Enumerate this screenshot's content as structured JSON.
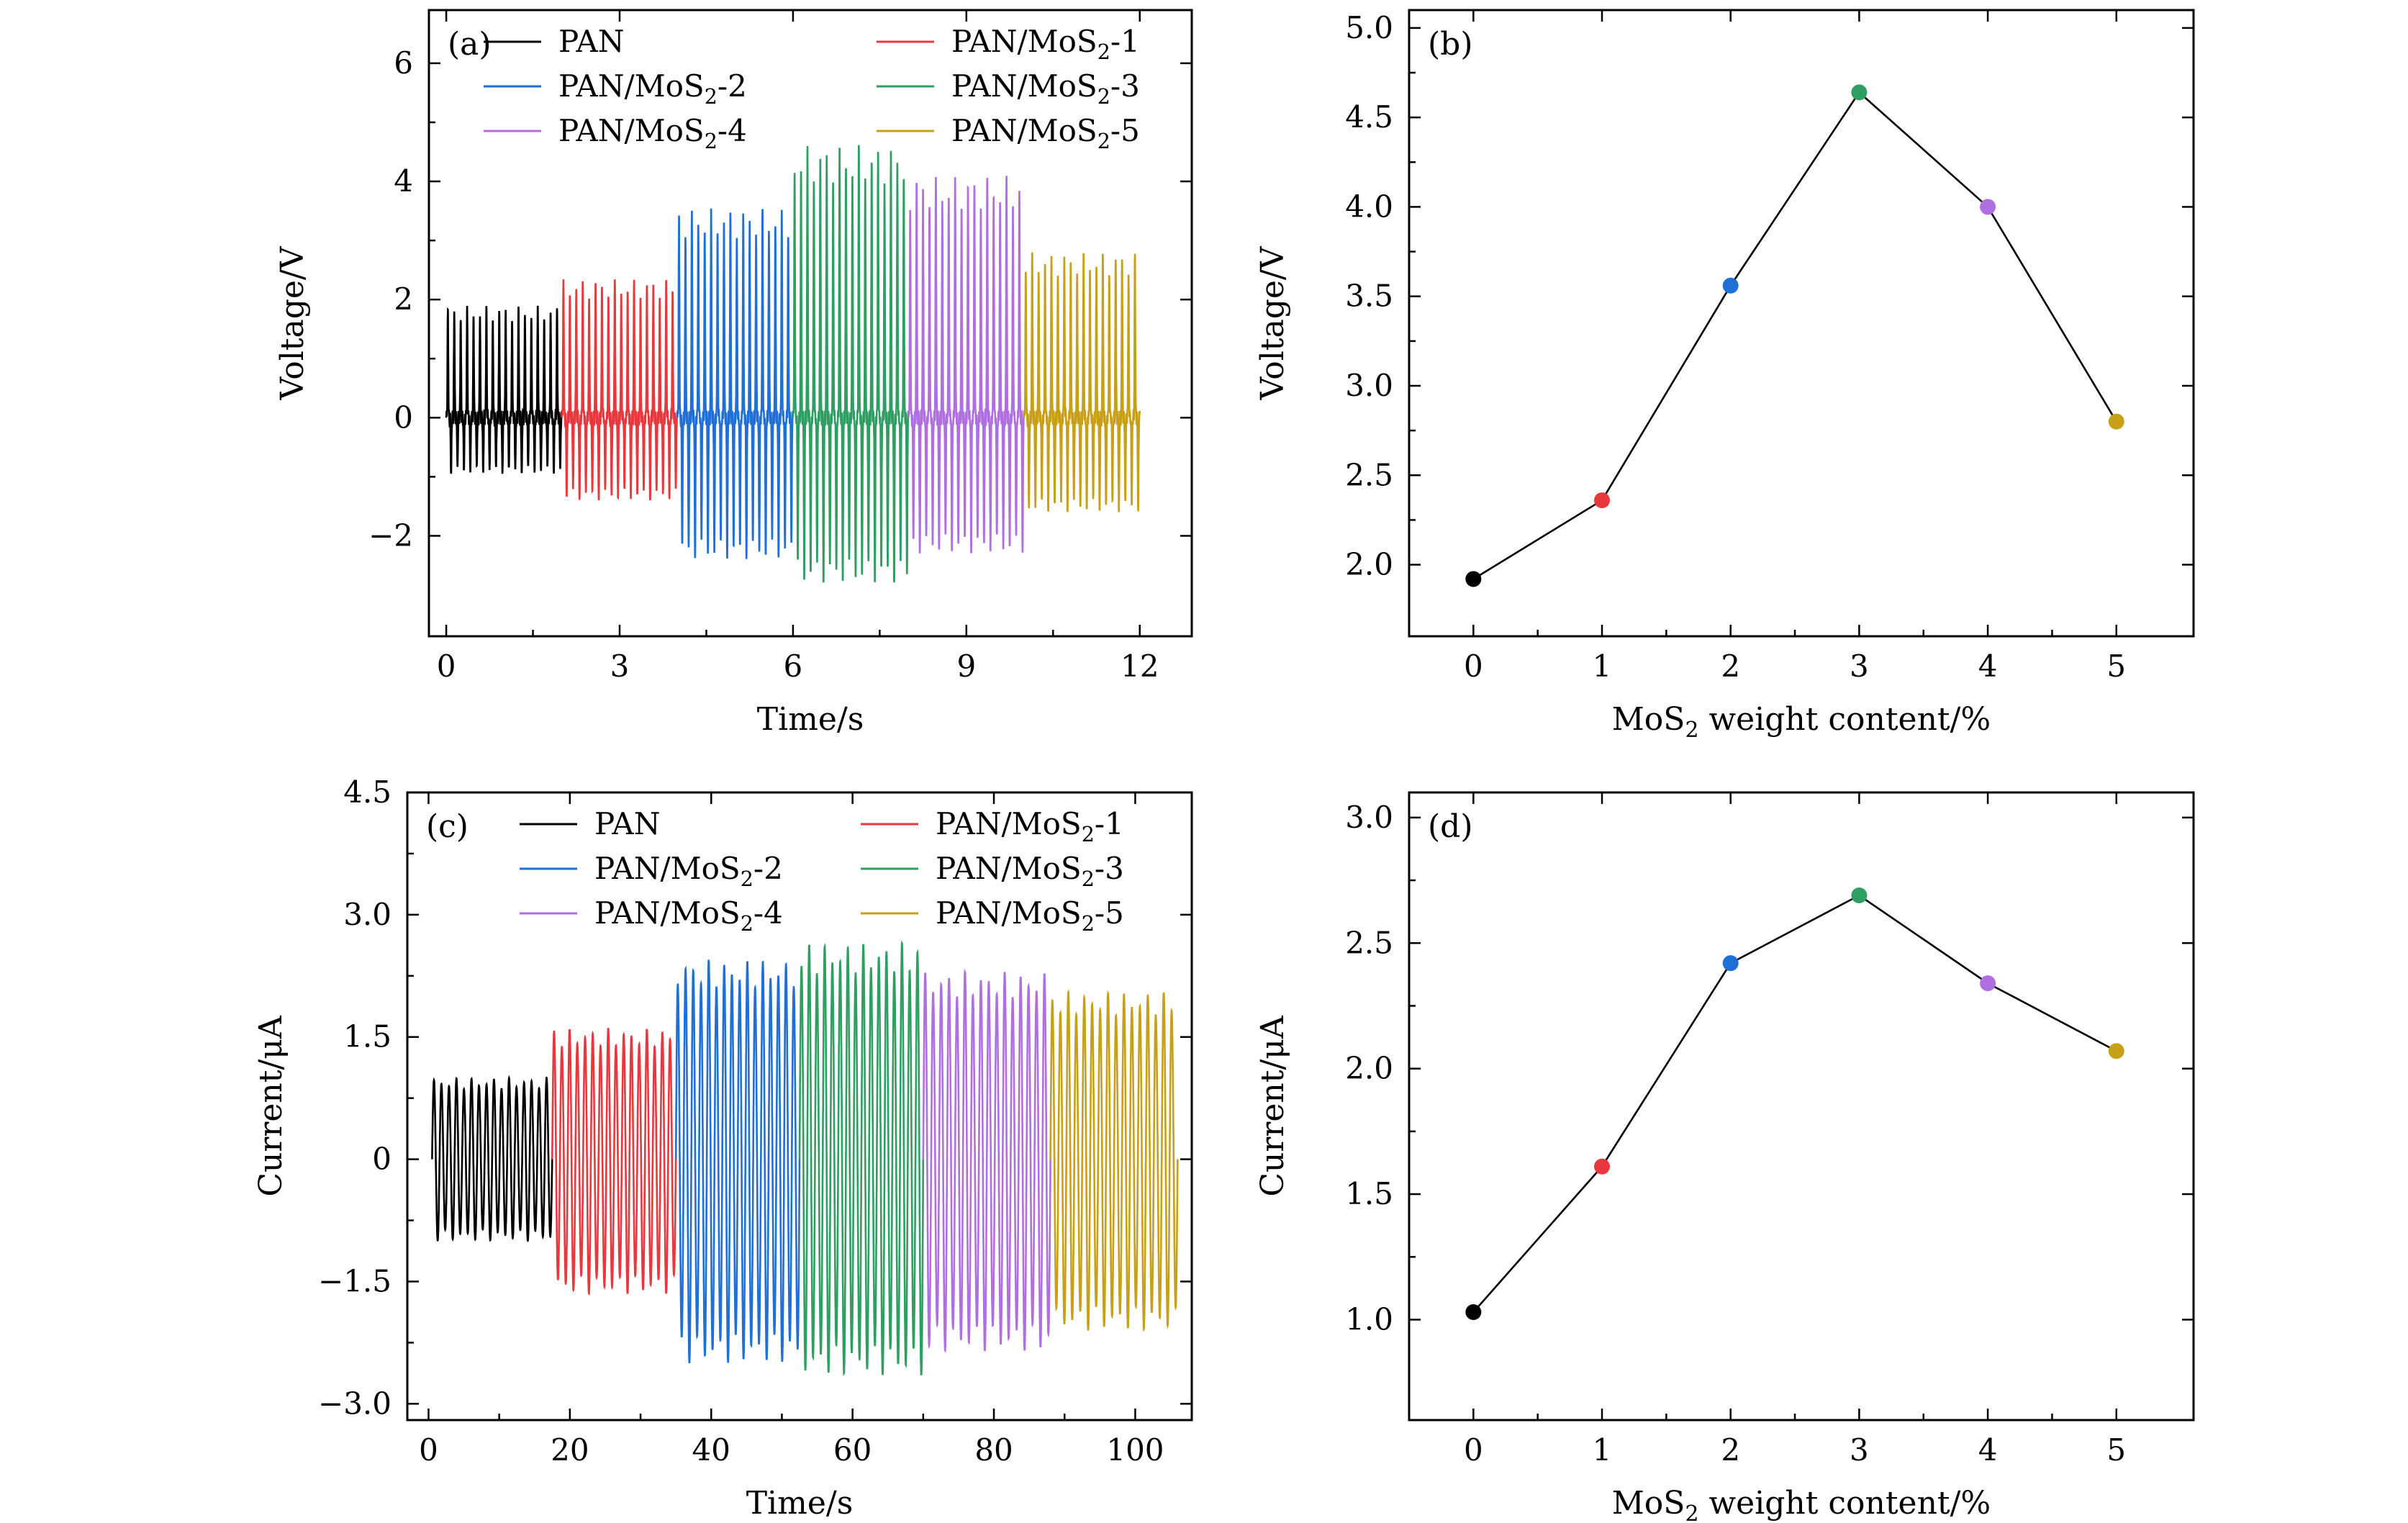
{
  "colors": {
    "PAN": "#000000",
    "PAN/MoS2-1": "#e8383d",
    "PAN/MoS2-2": "#1f6fd6",
    "PAN/MoS2-3": "#2f9e62",
    "PAN/MoS2-4": "#b06fe0",
    "PAN/MoS2-5": "#c8a018"
  },
  "chart_data": [
    {
      "panel": "(a)",
      "type": "line",
      "xlabel": "Time/s",
      "ylabel": "Voltage/V",
      "xlim": [
        -0.3,
        12.9
      ],
      "ylim": [
        -3.7,
        6.9
      ],
      "xticks": [
        0,
        3,
        6,
        9,
        12
      ],
      "yticks": [
        -2,
        0,
        2,
        4,
        6
      ],
      "xtick_labels": [
        "0",
        "3",
        "6",
        "9",
        "12"
      ],
      "ytick_labels": [
        "−2",
        "0",
        "2",
        "4",
        "6"
      ],
      "legend": [
        "PAN",
        "PAN/MoS2-1",
        "PAN/MoS2-2",
        "PAN/MoS2-3",
        "PAN/MoS2-4",
        "PAN/MoS2-5"
      ],
      "legend_placement": "top",
      "series": [
        {
          "name": "PAN",
          "x_range": [
            0,
            2
          ],
          "peak": 1.9,
          "trough": -0.95,
          "cycles": 18
        },
        {
          "name": "PAN/MoS2-1",
          "x_range": [
            2,
            4
          ],
          "peak": 2.35,
          "trough": -1.4,
          "cycles": 18
        },
        {
          "name": "PAN/MoS2-2",
          "x_range": [
            4,
            6
          ],
          "peak": 3.55,
          "trough": -2.4,
          "cycles": 18
        },
        {
          "name": "PAN/MoS2-3",
          "x_range": [
            6,
            8
          ],
          "peak": 4.62,
          "trough": -2.8,
          "cycles": 18
        },
        {
          "name": "PAN/MoS2-4",
          "x_range": [
            8,
            10
          ],
          "peak": 4.1,
          "trough": -2.3,
          "cycles": 18
        },
        {
          "name": "PAN/MoS2-5",
          "x_range": [
            10,
            12
          ],
          "peak": 2.8,
          "trough": -1.6,
          "cycles": 18
        }
      ]
    },
    {
      "panel": "(b)",
      "type": "line",
      "xlabel": "MoS2 weight content/%",
      "ylabel": "Voltage/V",
      "xlim": [
        -0.5,
        5.6
      ],
      "ylim": [
        1.6,
        5.1
      ],
      "xticks": [
        0,
        1,
        2,
        3,
        4,
        5
      ],
      "yticks": [
        2.0,
        2.5,
        3.0,
        3.5,
        4.0,
        4.5,
        5.0
      ],
      "xtick_labels": [
        "0",
        "1",
        "2",
        "3",
        "4",
        "5"
      ],
      "ytick_labels": [
        "2.0",
        "2.5",
        "3.0",
        "3.5",
        "4.0",
        "4.5",
        "5.0"
      ],
      "x": [
        0,
        1,
        2,
        3,
        4,
        5
      ],
      "values": [
        1.92,
        2.36,
        3.56,
        4.64,
        4.0,
        2.8
      ]
    },
    {
      "panel": "(c)",
      "type": "line",
      "xlabel": "Time/s",
      "ylabel": "Current/μA",
      "xlim": [
        -3,
        108
      ],
      "ylim": [
        -3.2,
        4.5
      ],
      "xticks": [
        0,
        20,
        40,
        60,
        80,
        100
      ],
      "yticks": [
        -3.0,
        -1.5,
        0,
        1.5,
        3.0,
        4.5
      ],
      "xtick_labels": [
        "0",
        "20",
        "40",
        "60",
        "80",
        "100"
      ],
      "ytick_labels": [
        "−3.0",
        "−1.5",
        "0",
        "1.5",
        "3.0",
        "4.5"
      ],
      "legend": [
        "PAN",
        "PAN/MoS2-1",
        "PAN/MoS2-2",
        "PAN/MoS2-3",
        "PAN/MoS2-4",
        "PAN/MoS2-5"
      ],
      "legend_placement": "top",
      "series": [
        {
          "name": "PAN",
          "x_range": [
            0.5,
            17.5
          ],
          "peak": 1.0,
          "trough": -1.0,
          "cycles": 16
        },
        {
          "name": "PAN/MoS2-1",
          "x_range": [
            17.5,
            35
          ],
          "peak": 1.6,
          "trough": -1.65,
          "cycles": 16
        },
        {
          "name": "PAN/MoS2-2",
          "x_range": [
            35,
            52.5
          ],
          "peak": 2.45,
          "trough": -2.5,
          "cycles": 16
        },
        {
          "name": "PAN/MoS2-3",
          "x_range": [
            52.5,
            70
          ],
          "peak": 2.65,
          "trough": -2.65,
          "cycles": 16
        },
        {
          "name": "PAN/MoS2-4",
          "x_range": [
            70,
            88
          ],
          "peak": 2.3,
          "trough": -2.35,
          "cycles": 16
        },
        {
          "name": "PAN/MoS2-5",
          "x_range": [
            88,
            106
          ],
          "peak": 2.05,
          "trough": -2.1,
          "cycles": 16
        }
      ]
    },
    {
      "panel": "(d)",
      "type": "line",
      "xlabel": "MoS2 weight content/%",
      "ylabel": "Current/μA",
      "xlim": [
        -0.5,
        5.6
      ],
      "ylim": [
        0.6,
        3.1
      ],
      "xticks": [
        0,
        1,
        2,
        3,
        4,
        5
      ],
      "yticks": [
        1.0,
        1.5,
        2.0,
        2.5,
        3.0
      ],
      "xtick_labels": [
        "0",
        "1",
        "2",
        "3",
        "4",
        "5"
      ],
      "ytick_labels": [
        "1.0",
        "1.5",
        "2.0",
        "2.5",
        "3.0"
      ],
      "x": [
        0,
        1,
        2,
        3,
        4,
        5
      ],
      "values": [
        1.03,
        1.61,
        2.42,
        2.69,
        2.34,
        2.07
      ]
    }
  ]
}
